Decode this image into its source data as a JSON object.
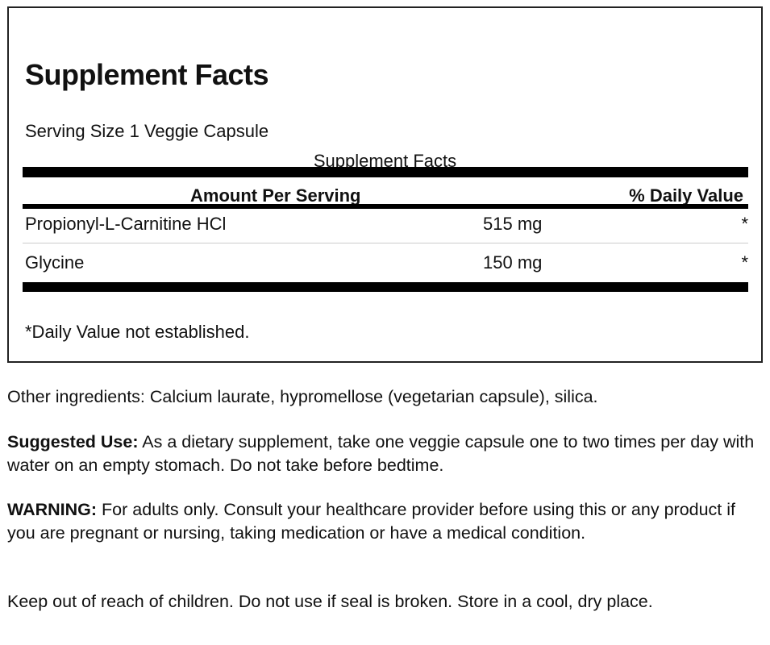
{
  "label": {
    "title": "Supplement Facts",
    "serving_size": "Serving Size 1 Veggie Capsule",
    "subtitle": "Supplement Facts",
    "header": {
      "amount": "Amount Per Serving",
      "daily_value": "% Daily Value"
    },
    "rows": [
      {
        "name": "Propionyl-L-Carnitine HCl",
        "amount": "515 mg",
        "dv": "*"
      },
      {
        "name": "Glycine",
        "amount": "150 mg",
        "dv": "*"
      }
    ],
    "footnote": "*Daily Value not established."
  },
  "other_ingredients": "Other ingredients: Calcium laurate, hypromellose (vegetarian capsule), silica.",
  "suggested_use": {
    "label": "Suggested Use:",
    "text": " As a dietary supplement, take one veggie capsule one to two times per day with water on an empty stomach. Do not take before bedtime."
  },
  "warning": {
    "label": "WARNING:",
    "text": " For adults only. Consult your healthcare provider before using this or any product if you are pregnant or nursing, taking medication or have a medical condition."
  },
  "storage": "Keep out of reach of children. Do not use if seal is broken. Store in a cool, dry place."
}
